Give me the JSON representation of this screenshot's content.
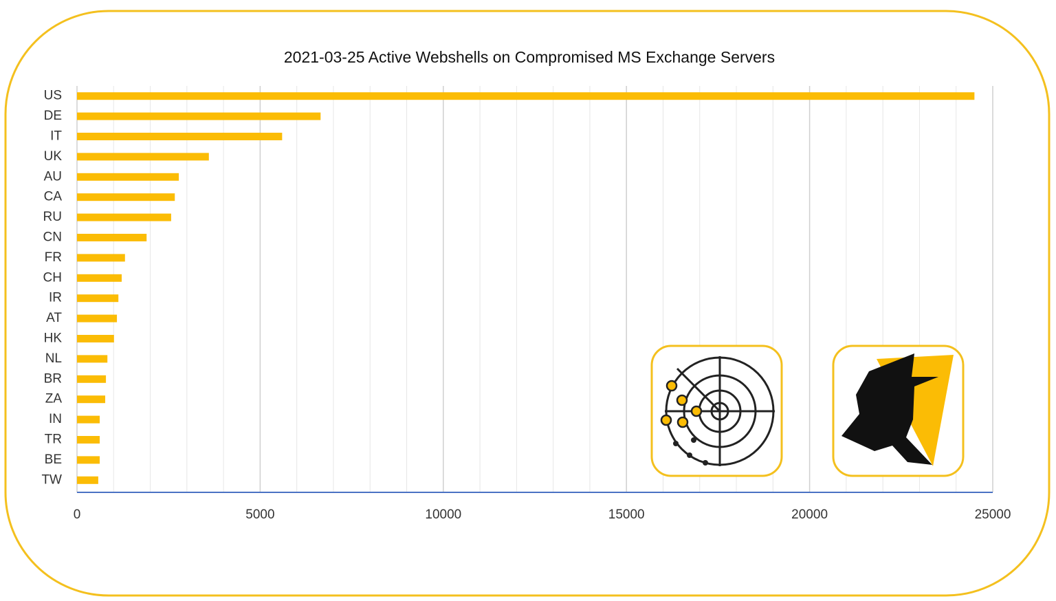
{
  "chart_data": {
    "type": "hbar",
    "title": "2021-03-25 Active Webshells on Compromised MS Exchange Servers",
    "categories": [
      "US",
      "DE",
      "IT",
      "UK",
      "AU",
      "CA",
      "RU",
      "CN",
      "FR",
      "CH",
      "IR",
      "AT",
      "HK",
      "NL",
      "BR",
      "ZA",
      "IN",
      "TR",
      "BE",
      "TW"
    ],
    "values": [
      24500,
      6650,
      5600,
      3600,
      2780,
      2670,
      2570,
      1900,
      1310,
      1220,
      1130,
      1090,
      1010,
      830,
      790,
      770,
      620,
      620,
      620,
      580
    ],
    "color": "#fbbc05",
    "xlim": [
      0,
      25000
    ],
    "xticks": [
      0,
      5000,
      10000,
      15000,
      20000,
      25000
    ],
    "minor_xticks": [
      1000,
      2000,
      3000,
      4000,
      6000,
      7000,
      8000,
      9000,
      11000,
      12000,
      13000,
      14000,
      16000,
      17000,
      18000,
      19000,
      21000,
      22000,
      23000,
      24000
    ],
    "grid": true
  }
}
